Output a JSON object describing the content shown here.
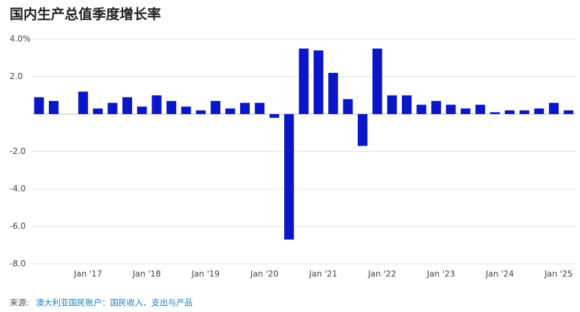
{
  "chart_data": {
    "type": "bar",
    "title": "国内生产总值季度增长率",
    "categories": [
      null,
      null,
      null,
      "Jan '17",
      null,
      null,
      null,
      "Jan '18",
      null,
      null,
      null,
      "Jan '19",
      null,
      null,
      null,
      "Jan '20",
      null,
      null,
      null,
      "Jan '21",
      null,
      null,
      null,
      "Jan '22",
      null,
      null,
      null,
      "Jan '23",
      null,
      null,
      null,
      "Jan '24",
      null,
      null,
      null,
      "Jan '25",
      null
    ],
    "values": [
      0.9,
      0.7,
      0,
      1.2,
      0.3,
      0.6,
      0.9,
      0.4,
      1.0,
      0.7,
      0.4,
      0.2,
      0.7,
      0.3,
      0.6,
      0.6,
      -0.2,
      -6.7,
      3.5,
      3.4,
      2.2,
      0.8,
      -1.7,
      3.5,
      1.0,
      1.0,
      0.5,
      0.7,
      0.5,
      0.3,
      0.5,
      0.1,
      0.2,
      0.2,
      0.3,
      0.6,
      0.2
    ],
    "color": "#0b16c9",
    "ylim": [
      -8,
      4
    ],
    "yticks": [
      {
        "value": -8,
        "label": "-8.0"
      },
      {
        "value": -6,
        "label": "-6.0"
      },
      {
        "value": -4,
        "label": "-4.0"
      },
      {
        "value": -2,
        "label": "-2.0"
      },
      {
        "value": 2,
        "label": "2.0"
      },
      {
        "value": 4,
        "label": "4.0%"
      }
    ],
    "grid": true,
    "source_label": "来源:",
    "source": "澳大利亚国民账户：国民收入、支出与产品"
  }
}
